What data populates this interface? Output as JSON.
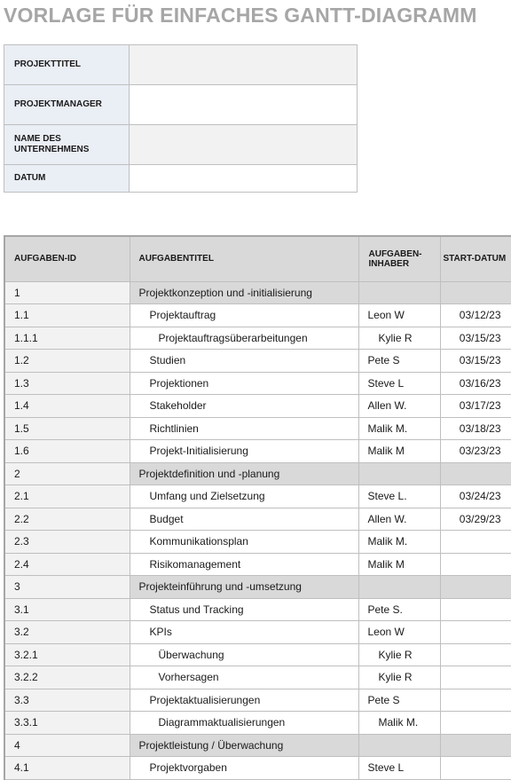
{
  "title": "VORLAGE FÜR EINFACHES GANTT-DIAGRAMM",
  "info": [
    {
      "label": "PROJEKTTITEL",
      "value": ""
    },
    {
      "label": "PROJEKTMANAGER",
      "value": ""
    },
    {
      "label": "NAME DES\nUNTERNEHMENS",
      "value": ""
    },
    {
      "label": "DATUM",
      "value": ""
    }
  ],
  "columns": {
    "id": "AUFGABEN-ID",
    "title": "AUFGABENTITEL",
    "owner": "AUFGABEN-\nINHABER",
    "start": "START-DATUM"
  },
  "tasks": [
    {
      "id": "1",
      "title": "Projektkonzeption und -initialisierung",
      "owner": "",
      "start": "",
      "level": 0,
      "phase": true
    },
    {
      "id": "1.1",
      "title": "Projektauftrag",
      "owner": "Leon W",
      "start": "03/12/23",
      "level": 1
    },
    {
      "id": "1.1.1",
      "title": "Projektauftragsüberarbeitungen",
      "owner": "Kylie R",
      "start": "03/15/23",
      "level": 2
    },
    {
      "id": "1.2",
      "title": "Studien",
      "owner": "Pete S",
      "start": "03/15/23",
      "level": 1
    },
    {
      "id": "1.3",
      "title": "Projektionen",
      "owner": "Steve L",
      "start": "03/16/23",
      "level": 1
    },
    {
      "id": "1.4",
      "title": "Stakeholder",
      "owner": "Allen W.",
      "start": "03/17/23",
      "level": 1
    },
    {
      "id": "1.5",
      "title": "Richtlinien",
      "owner": "Malik M.",
      "start": "03/18/23",
      "level": 1
    },
    {
      "id": "1.6",
      "title": "Projekt-Initialisierung",
      "owner": "Malik M",
      "start": "03/23/23",
      "level": 1
    },
    {
      "id": "2",
      "title": "Projektdefinition und -planung",
      "owner": "",
      "start": "",
      "level": 0,
      "phase": true
    },
    {
      "id": "2.1",
      "title": "Umfang und Zielsetzung",
      "owner": "Steve L.",
      "start": "03/24/23",
      "level": 1
    },
    {
      "id": "2.2",
      "title": "Budget",
      "owner": "Allen W.",
      "start": "03/29/23",
      "level": 1
    },
    {
      "id": "2.3",
      "title": "Kommunikationsplan",
      "owner": "Malik M.",
      "start": "",
      "level": 1
    },
    {
      "id": "2.4",
      "title": "Risikomanagement",
      "owner": "Malik M",
      "start": "",
      "level": 1
    },
    {
      "id": "3",
      "title": "Projekteinführung und -umsetzung",
      "owner": "",
      "start": "",
      "level": 0,
      "phase": true
    },
    {
      "id": "3.1",
      "title": "Status und Tracking",
      "owner": "Pete S.",
      "start": "",
      "level": 1
    },
    {
      "id": "3.2",
      "title": "KPIs",
      "owner": "Leon W",
      "start": "",
      "level": 1
    },
    {
      "id": "3.2.1",
      "title": "Überwachung",
      "owner": "Kylie R",
      "start": "",
      "level": 2
    },
    {
      "id": "3.2.2",
      "title": "Vorhersagen",
      "owner": "Kylie R",
      "start": "",
      "level": 2
    },
    {
      "id": "3.3",
      "title": "Projektaktualisierungen",
      "owner": "Pete S",
      "start": "",
      "level": 1
    },
    {
      "id": "3.3.1",
      "title": "Diagrammaktualisierungen",
      "owner": "Malik M.",
      "start": "",
      "level": 2
    },
    {
      "id": "4",
      "title": "Projektleistung / Überwachung",
      "owner": "",
      "start": "",
      "level": 0,
      "phase": true
    },
    {
      "id": "4.1",
      "title": "Projektvorgaben",
      "owner": "Steve L",
      "start": "",
      "level": 1
    }
  ]
}
